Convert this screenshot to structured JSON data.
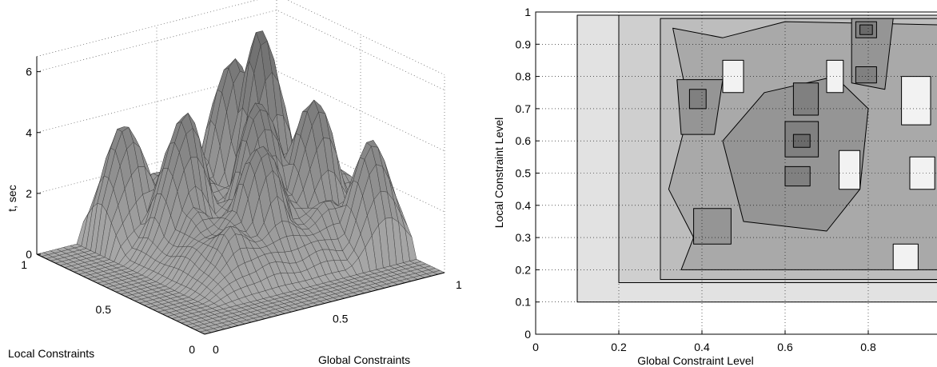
{
  "chart_data": [
    {
      "type": "surface",
      "zlabel": "t, sec",
      "xlabel": "Global Constraints",
      "ylabel": "Local Constraints",
      "xlim": [
        0,
        1
      ],
      "ylim": [
        0,
        1
      ],
      "zlim": [
        0,
        6.5
      ],
      "x_tick_labels": [
        "0",
        "0.5",
        "1"
      ],
      "y_tick_labels": [
        "0",
        "0.5",
        "1"
      ],
      "z_tick_labels": [
        "0",
        "2",
        "4",
        "6"
      ],
      "grid": true,
      "surface_color": "#9a9a9a",
      "mesh_color": "#3a3a3a",
      "x": [
        0,
        0.05,
        0.1,
        0.15,
        0.2,
        0.25,
        0.3,
        0.35,
        0.4,
        0.45,
        0.5,
        0.55,
        0.6,
        0.65,
        0.7,
        0.75,
        0.8,
        0.85,
        0.9,
        0.95,
        1.0
      ],
      "y": [
        0,
        0.05,
        0.1,
        0.15,
        0.2,
        0.25,
        0.3,
        0.35,
        0.4,
        0.45,
        0.5,
        0.55,
        0.6,
        0.65,
        0.7,
        0.75,
        0.8,
        0.85,
        0.9,
        0.95,
        1.0
      ],
      "peaks": [
        {
          "x": 0.8,
          "y": 0.8,
          "z": 6.2
        },
        {
          "x": 0.75,
          "y": 0.9,
          "z": 5.4
        },
        {
          "x": 0.65,
          "y": 0.6,
          "z": 5.0
        },
        {
          "x": 0.4,
          "y": 0.7,
          "z": 4.6
        },
        {
          "x": 0.8,
          "y": 0.5,
          "z": 4.8
        },
        {
          "x": 0.55,
          "y": 0.45,
          "z": 4.2
        },
        {
          "x": 0.9,
          "y": 0.3,
          "z": 3.8
        },
        {
          "x": 0.3,
          "y": 0.9,
          "z": 3.9
        }
      ]
    },
    {
      "type": "contour",
      "xlabel": "Global Constraint Level",
      "ylabel": "Local Constraint Level",
      "xlim": [
        0,
        1
      ],
      "ylim": [
        0,
        1
      ],
      "x_ticks": [
        0,
        0.2,
        0.4,
        0.6,
        0.8
      ],
      "x_tick_labels": [
        "0",
        "0.2",
        "0.4",
        "0.6",
        "0.8"
      ],
      "y_ticks": [
        0,
        0.1,
        0.2,
        0.3,
        0.4,
        0.5,
        0.6,
        0.7,
        0.8,
        0.9,
        1
      ],
      "y_tick_labels": [
        "0",
        "0.1",
        "0.2",
        "0.3",
        "0.4",
        "0.5",
        "0.6",
        "0.7",
        "0.8",
        "0.9",
        "1"
      ],
      "grid": true,
      "level_fills": [
        "#f2f2f2",
        "#e2e2e2",
        "#cfcfcf",
        "#bdbdbd",
        "#a9a9a9",
        "#959595",
        "#808080",
        "#6a6a6a"
      ],
      "regions": [
        {
          "level": 1,
          "points": [
            [
              0.1,
              0.1
            ],
            [
              0.98,
              0.1
            ],
            [
              0.99,
              0.99
            ],
            [
              0.1,
              0.99
            ]
          ]
        },
        {
          "level": 2,
          "points": [
            [
              0.2,
              0.16
            ],
            [
              0.99,
              0.16
            ],
            [
              0.99,
              0.99
            ],
            [
              0.2,
              0.99
            ]
          ]
        },
        {
          "level": 3,
          "points": [
            [
              0.3,
              0.17
            ],
            [
              0.99,
              0.17
            ],
            [
              0.99,
              0.98
            ],
            [
              0.3,
              0.98
            ]
          ]
        },
        {
          "level": 4,
          "points": [
            [
              0.35,
              0.2
            ],
            [
              0.98,
              0.2
            ],
            [
              0.98,
              0.96
            ],
            [
              0.6,
              0.97
            ],
            [
              0.45,
              0.92
            ],
            [
              0.33,
              0.95
            ],
            [
              0.37,
              0.7
            ],
            [
              0.32,
              0.45
            ],
            [
              0.38,
              0.3
            ]
          ]
        },
        {
          "level": 5,
          "points": [
            [
              0.5,
              0.35
            ],
            [
              0.7,
              0.32
            ],
            [
              0.78,
              0.45
            ],
            [
              0.8,
              0.7
            ],
            [
              0.72,
              0.8
            ],
            [
              0.55,
              0.75
            ],
            [
              0.45,
              0.6
            ],
            [
              0.48,
              0.45
            ]
          ]
        },
        {
          "level": 5,
          "points": [
            [
              0.76,
              0.78
            ],
            [
              0.84,
              0.76
            ],
            [
              0.86,
              0.98
            ],
            [
              0.76,
              0.98
            ]
          ]
        },
        {
          "level": 5,
          "points": [
            [
              0.35,
              0.62
            ],
            [
              0.43,
              0.62
            ],
            [
              0.45,
              0.79
            ],
            [
              0.34,
              0.79
            ]
          ]
        },
        {
          "level": 5,
          "points": [
            [
              0.38,
              0.28
            ],
            [
              0.47,
              0.28
            ],
            [
              0.47,
              0.39
            ],
            [
              0.38,
              0.39
            ]
          ]
        },
        {
          "level": 6,
          "points": [
            [
              0.6,
              0.55
            ],
            [
              0.68,
              0.55
            ],
            [
              0.68,
              0.66
            ],
            [
              0.6,
              0.66
            ]
          ]
        },
        {
          "level": 6,
          "points": [
            [
              0.62,
              0.68
            ],
            [
              0.68,
              0.68
            ],
            [
              0.68,
              0.78
            ],
            [
              0.62,
              0.78
            ]
          ]
        },
        {
          "level": 6,
          "points": [
            [
              0.77,
              0.92
            ],
            [
              0.82,
              0.92
            ],
            [
              0.82,
              0.97
            ],
            [
              0.77,
              0.97
            ]
          ]
        },
        {
          "level": 6,
          "points": [
            [
              0.77,
              0.78
            ],
            [
              0.82,
              0.78
            ],
            [
              0.82,
              0.83
            ],
            [
              0.77,
              0.83
            ]
          ]
        },
        {
          "level": 6,
          "points": [
            [
              0.37,
              0.7
            ],
            [
              0.41,
              0.7
            ],
            [
              0.41,
              0.76
            ],
            [
              0.37,
              0.76
            ]
          ]
        },
        {
          "level": 6,
          "points": [
            [
              0.6,
              0.46
            ],
            [
              0.66,
              0.46
            ],
            [
              0.66,
              0.52
            ],
            [
              0.6,
              0.52
            ]
          ]
        },
        {
          "level": 7,
          "points": [
            [
              0.62,
              0.58
            ],
            [
              0.66,
              0.58
            ],
            [
              0.66,
              0.62
            ],
            [
              0.62,
              0.62
            ]
          ]
        },
        {
          "level": 7,
          "points": [
            [
              0.78,
              0.93
            ],
            [
              0.81,
              0.93
            ],
            [
              0.81,
              0.96
            ],
            [
              0.78,
              0.96
            ]
          ]
        },
        {
          "level": 0,
          "points": [
            [
              0.45,
              0.75
            ],
            [
              0.5,
              0.75
            ],
            [
              0.5,
              0.85
            ],
            [
              0.45,
              0.85
            ]
          ]
        },
        {
          "level": 0,
          "points": [
            [
              0.7,
              0.75
            ],
            [
              0.74,
              0.75
            ],
            [
              0.74,
              0.85
            ],
            [
              0.7,
              0.85
            ]
          ]
        },
        {
          "level": 0,
          "points": [
            [
              0.88,
              0.65
            ],
            [
              0.95,
              0.65
            ],
            [
              0.95,
              0.8
            ],
            [
              0.88,
              0.8
            ]
          ]
        },
        {
          "level": 0,
          "points": [
            [
              0.73,
              0.45
            ],
            [
              0.78,
              0.45
            ],
            [
              0.78,
              0.57
            ],
            [
              0.73,
              0.57
            ]
          ]
        },
        {
          "level": 0,
          "points": [
            [
              0.9,
              0.45
            ],
            [
              0.96,
              0.45
            ],
            [
              0.96,
              0.55
            ],
            [
              0.9,
              0.55
            ]
          ]
        },
        {
          "level": 0,
          "points": [
            [
              0.86,
              0.2
            ],
            [
              0.92,
              0.2
            ],
            [
              0.92,
              0.28
            ],
            [
              0.86,
              0.28
            ]
          ]
        }
      ]
    }
  ]
}
